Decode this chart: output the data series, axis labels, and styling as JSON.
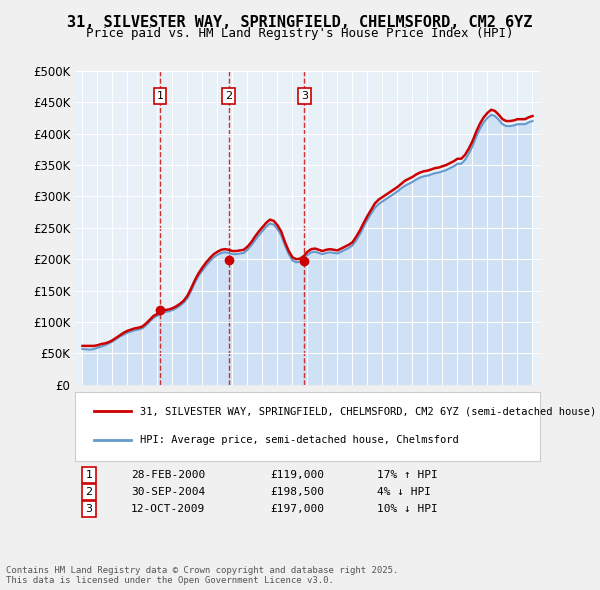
{
  "title": "31, SILVESTER WAY, SPRINGFIELD, CHELMSFORD, CM2 6YZ",
  "subtitle": "Price paid vs. HM Land Registry's House Price Index (HPI)",
  "ylabel": "",
  "xlabel": "",
  "ylim": [
    0,
    500000
  ],
  "yticks": [
    0,
    50000,
    100000,
    150000,
    200000,
    250000,
    300000,
    350000,
    400000,
    450000,
    500000
  ],
  "ytick_labels": [
    "£0",
    "£50K",
    "£100K",
    "£150K",
    "£200K",
    "£250K",
    "£300K",
    "£350K",
    "£400K",
    "£450K",
    "£500K"
  ],
  "background_color": "#e8f0f8",
  "plot_bg_color": "#e8f0f8",
  "grid_color": "#ffffff",
  "red_line_color": "#cc0000",
  "blue_line_color": "#6699cc",
  "blue_fill_color": "#aaccee",
  "vline_color": "#cc0000",
  "marker_color": "#cc0000",
  "transactions": [
    {
      "date_num": 2000.16,
      "price": 119000,
      "label": "1",
      "date_str": "28-FEB-2000",
      "price_str": "£119,000",
      "hpi_str": "17% ↑ HPI"
    },
    {
      "date_num": 2004.75,
      "price": 198500,
      "label": "2",
      "date_str": "30-SEP-2004",
      "price_str": "£198,500",
      "hpi_str": "4% ↓ HPI"
    },
    {
      "date_num": 2009.79,
      "price": 197000,
      "label": "3",
      "date_str": "12-OCT-2009",
      "price_str": "£197,000",
      "hpi_str": "10% ↓ HPI"
    }
  ],
  "legend_red": "31, SILVESTER WAY, SPRINGFIELD, CHELMSFORD, CM2 6YZ (semi-detached house)",
  "legend_blue": "HPI: Average price, semi-detached house, Chelmsford",
  "footer": "Contains HM Land Registry data © Crown copyright and database right 2025.\nThis data is licensed under the Open Government Licence v3.0.",
  "hpi_data": {
    "years": [
      1995.0,
      1995.25,
      1995.5,
      1995.75,
      1996.0,
      1996.25,
      1996.5,
      1996.75,
      1997.0,
      1997.25,
      1997.5,
      1997.75,
      1998.0,
      1998.25,
      1998.5,
      1998.75,
      1999.0,
      1999.25,
      1999.5,
      1999.75,
      2000.0,
      2000.25,
      2000.5,
      2000.75,
      2001.0,
      2001.25,
      2001.5,
      2001.75,
      2002.0,
      2002.25,
      2002.5,
      2002.75,
      2003.0,
      2003.25,
      2003.5,
      2003.75,
      2004.0,
      2004.25,
      2004.5,
      2004.75,
      2005.0,
      2005.25,
      2005.5,
      2005.75,
      2006.0,
      2006.25,
      2006.5,
      2006.75,
      2007.0,
      2007.25,
      2007.5,
      2007.75,
      2008.0,
      2008.25,
      2008.5,
      2008.75,
      2009.0,
      2009.25,
      2009.5,
      2009.75,
      2010.0,
      2010.25,
      2010.5,
      2010.75,
      2011.0,
      2011.25,
      2011.5,
      2011.75,
      2012.0,
      2012.25,
      2012.5,
      2012.75,
      2013.0,
      2013.25,
      2013.5,
      2013.75,
      2014.0,
      2014.25,
      2014.5,
      2014.75,
      2015.0,
      2015.25,
      2015.5,
      2015.75,
      2016.0,
      2016.25,
      2016.5,
      2016.75,
      2017.0,
      2017.25,
      2017.5,
      2017.75,
      2018.0,
      2018.25,
      2018.5,
      2018.75,
      2019.0,
      2019.25,
      2019.5,
      2019.75,
      2020.0,
      2020.25,
      2020.5,
      2020.75,
      2021.0,
      2021.25,
      2021.5,
      2021.75,
      2022.0,
      2022.25,
      2022.5,
      2022.75,
      2023.0,
      2023.25,
      2023.5,
      2023.75,
      2024.0,
      2024.25,
      2024.5,
      2024.75,
      2025.0
    ],
    "hpi_values": [
      57000,
      56500,
      56000,
      57000,
      59000,
      61000,
      63000,
      66000,
      69000,
      73000,
      77000,
      80000,
      83000,
      85000,
      87000,
      88000,
      90000,
      95000,
      101000,
      107000,
      110000,
      113000,
      116000,
      117000,
      119000,
      122000,
      126000,
      131000,
      138000,
      150000,
      163000,
      174000,
      182000,
      190000,
      197000,
      203000,
      207000,
      210000,
      211000,
      210000,
      208000,
      208000,
      209000,
      210000,
      215000,
      222000,
      230000,
      238000,
      245000,
      252000,
      257000,
      255000,
      248000,
      238000,
      222000,
      208000,
      198000,
      195000,
      196000,
      200000,
      207000,
      211000,
      212000,
      210000,
      208000,
      210000,
      211000,
      210000,
      209000,
      212000,
      215000,
      218000,
      222000,
      230000,
      240000,
      252000,
      263000,
      273000,
      282000,
      288000,
      292000,
      296000,
      300000,
      304000,
      308000,
      313000,
      317000,
      320000,
      323000,
      327000,
      330000,
      332000,
      333000,
      335000,
      337000,
      338000,
      340000,
      342000,
      345000,
      348000,
      352000,
      352000,
      358000,
      368000,
      380000,
      395000,
      408000,
      418000,
      425000,
      430000,
      428000,
      422000,
      415000,
      412000,
      412000,
      413000,
      415000,
      415000,
      415000,
      418000,
      420000
    ],
    "red_values": [
      62000,
      62000,
      62000,
      62000,
      63000,
      65000,
      66000,
      68000,
      71000,
      75000,
      79000,
      83000,
      86000,
      88000,
      90000,
      91000,
      93000,
      98000,
      104000,
      110000,
      113000,
      116000,
      119000,
      120000,
      122000,
      125000,
      129000,
      134000,
      142000,
      154000,
      167000,
      178000,
      187000,
      195000,
      202000,
      208000,
      212000,
      215000,
      216000,
      215000,
      213000,
      213000,
      214000,
      215000,
      220000,
      227000,
      236000,
      244000,
      251000,
      258000,
      263000,
      261000,
      254000,
      244000,
      227000,
      213000,
      203000,
      200000,
      201000,
      205000,
      212000,
      216000,
      217000,
      215000,
      213000,
      215000,
      216000,
      215000,
      214000,
      217000,
      220000,
      223000,
      227000,
      236000,
      246000,
      258000,
      269000,
      279000,
      289000,
      295000,
      299000,
      303000,
      307000,
      311000,
      315000,
      320000,
      325000,
      328000,
      331000,
      335000,
      338000,
      340000,
      341000,
      343000,
      345000,
      346000,
      348000,
      350000,
      353000,
      356000,
      360000,
      360000,
      366000,
      376000,
      388000,
      403000,
      416000,
      426000,
      433000,
      438000,
      436000,
      430000,
      423000,
      420000,
      420000,
      421000,
      423000,
      423000,
      423000,
      426000,
      428000
    ]
  }
}
